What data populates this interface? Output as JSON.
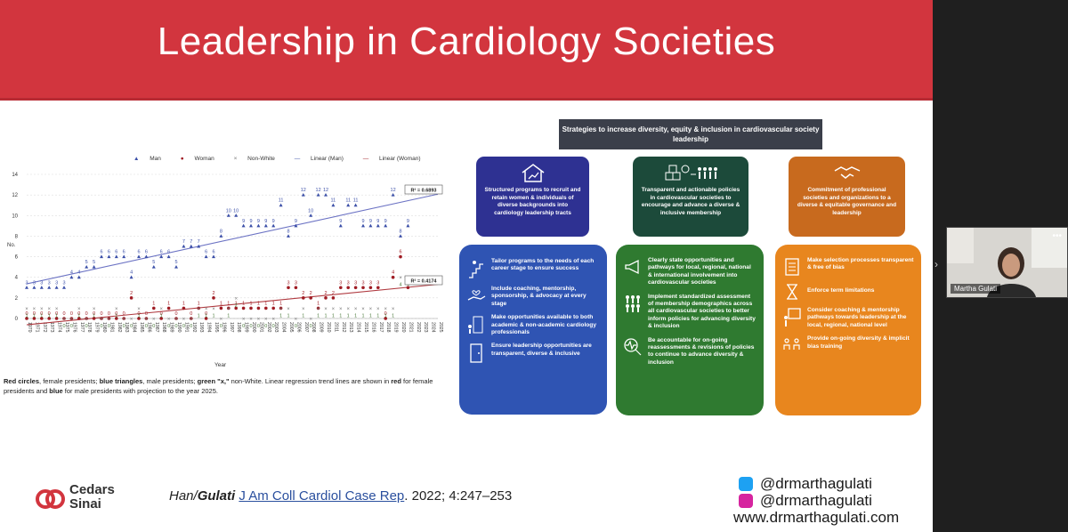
{
  "slide": {
    "title": "Leadership in Cardiology Societies"
  },
  "chart_data": {
    "type": "scatter",
    "legend": [
      "Man",
      "Woman",
      "Non-White",
      "Linear (Man)",
      "Linear (Woman)"
    ],
    "xlabel": "Year",
    "ylabel": "No.",
    "ylim": [
      0,
      14
    ],
    "yticks": [
      "0",
      "2",
      "4",
      "6",
      "8",
      "10",
      "12",
      "14"
    ],
    "years": [
      "1970",
      "1971",
      "1972",
      "1973",
      "1974",
      "1975",
      "1976",
      "1977",
      "1978",
      "1979",
      "1980",
      "1981",
      "1982",
      "1983",
      "1984",
      "1985",
      "1986",
      "1987",
      "1988",
      "1989",
      "1990",
      "1991",
      "1992",
      "1993",
      "1994",
      "1995",
      "1996",
      "1997",
      "1998",
      "1999",
      "2000",
      "2001",
      "2002",
      "2003",
      "2004",
      "2005",
      "2006",
      "2007",
      "2008",
      "2009",
      "2010",
      "2011",
      "2012",
      "2013",
      "2014",
      "2015",
      "2016",
      "2017",
      "2018",
      "2019",
      "2020",
      "2021",
      "2022",
      "2023",
      "2024",
      "2025"
    ],
    "series": [
      {
        "name": "Man",
        "values": [
          3,
          3,
          3,
          3,
          3,
          3,
          4,
          4,
          5,
          5,
          6,
          6,
          6,
          6,
          4,
          6,
          6,
          5,
          6,
          6,
          5,
          7,
          7,
          7,
          6,
          6,
          8,
          10,
          10,
          9,
          9,
          9,
          9,
          9,
          11,
          8,
          9,
          12,
          10,
          12,
          12,
          11,
          9,
          11,
          11,
          9,
          9,
          9,
          9,
          12,
          8,
          9
        ]
      },
      {
        "name": "Woman",
        "values": [
          0,
          0,
          0,
          0,
          0,
          0,
          0,
          0,
          0,
          0,
          0,
          0,
          0,
          0,
          2,
          0,
          0,
          1,
          0,
          1,
          0,
          1,
          0,
          1,
          0,
          2,
          1,
          1,
          1,
          1,
          1,
          1,
          1,
          1,
          1,
          3,
          3,
          2,
          2,
          1,
          2,
          2,
          3,
          3,
          3,
          3,
          3,
          3,
          0,
          4,
          6,
          3
        ]
      },
      {
        "name": "Non-White",
        "values": [
          1,
          1,
          1,
          1,
          1,
          0,
          0,
          1,
          0,
          1,
          0,
          0,
          1,
          0,
          0,
          1,
          0,
          0,
          1,
          0,
          0,
          0,
          0,
          1,
          1,
          1,
          0,
          1,
          2,
          0,
          0,
          0,
          0,
          0,
          1,
          1,
          0,
          1,
          0,
          1,
          1,
          1,
          1,
          1,
          1,
          1,
          1,
          1,
          1,
          1,
          4,
          4
        ]
      }
    ],
    "r2_man": "R² = 0.6893",
    "r2_woman": "R² = 0.4174",
    "caption_bold1": "Red circles",
    "caption_t1": ", female presidents; ",
    "caption_bold2": "blue triangles",
    "caption_t2": ", male presidents; ",
    "caption_bold3": "green \"x,\"",
    "caption_t3": " non-White. Linear regression trend lines are shown in ",
    "caption_bold4": "red",
    "caption_t4": " for female presidents and ",
    "caption_bold5": "blue",
    "caption_t5": " for male presidents with projection to the year 2025."
  },
  "strategies": {
    "header": "Strategies to increase diversity, equity & inclusion in cardiovascular society leadership",
    "top": [
      {
        "text": "Structured programs to recruit and retain women & individuals of diverse backgrounds into cardiology leadership tracts",
        "color": "#2e3192"
      },
      {
        "text": "Transparent and actionable policies in cardiovascular societies to encourage and advance a diverse & inclusive membership",
        "color": "#1c4a3a"
      },
      {
        "text": "Commitment of professional societies and organizations to a diverse & equitable governance and leadership",
        "color": "#c86a1e"
      }
    ],
    "blue": [
      "Tailor programs to the needs of each career stage to ensure success",
      "Include coaching, mentorship, sponsorship, & advocacy at every stage",
      "Make opportunities available to both academic & non-academic cardiology professionals",
      "Ensure leadership opportunities are transparent, diverse & inclusive"
    ],
    "green": [
      "Clearly state opportunities and pathways for local, regional, national & international involvement into cardiovascular societies",
      "Implement standardized assessment of membership demographics across all cardiovascular societies to better inform policies for advancing diversity & inclusion",
      "Be accountable for on-going reassessments & revisions of policies to continue to advance diversity & inclusion"
    ],
    "orange": [
      "Make selection processes transparent & free of bias",
      "Enforce term limitations",
      "Consider coaching & mentorship pathways towards leadership at the local, regional, national level",
      "Provide on-going diversity & implicit bias training"
    ]
  },
  "footer": {
    "logo_line1": "Cedars",
    "logo_line2": "Sinai",
    "cite_authors1": "Han/",
    "cite_authors2": "Gulati",
    "cite_journal": "J Am Coll Cardiol Case Rep",
    "cite_rest": ". 2022; 4:247–253",
    "twitter": "@drmarthagulati",
    "instagram": "@drmarthagulati",
    "website": "www.drmarthagulati.com"
  },
  "video": {
    "name": "Martha Gulati"
  },
  "colors": {
    "banner": "#d2353e",
    "man": "#3b4fa8",
    "woman": "#a01c24",
    "nonwhite": "#4a7a3a"
  }
}
